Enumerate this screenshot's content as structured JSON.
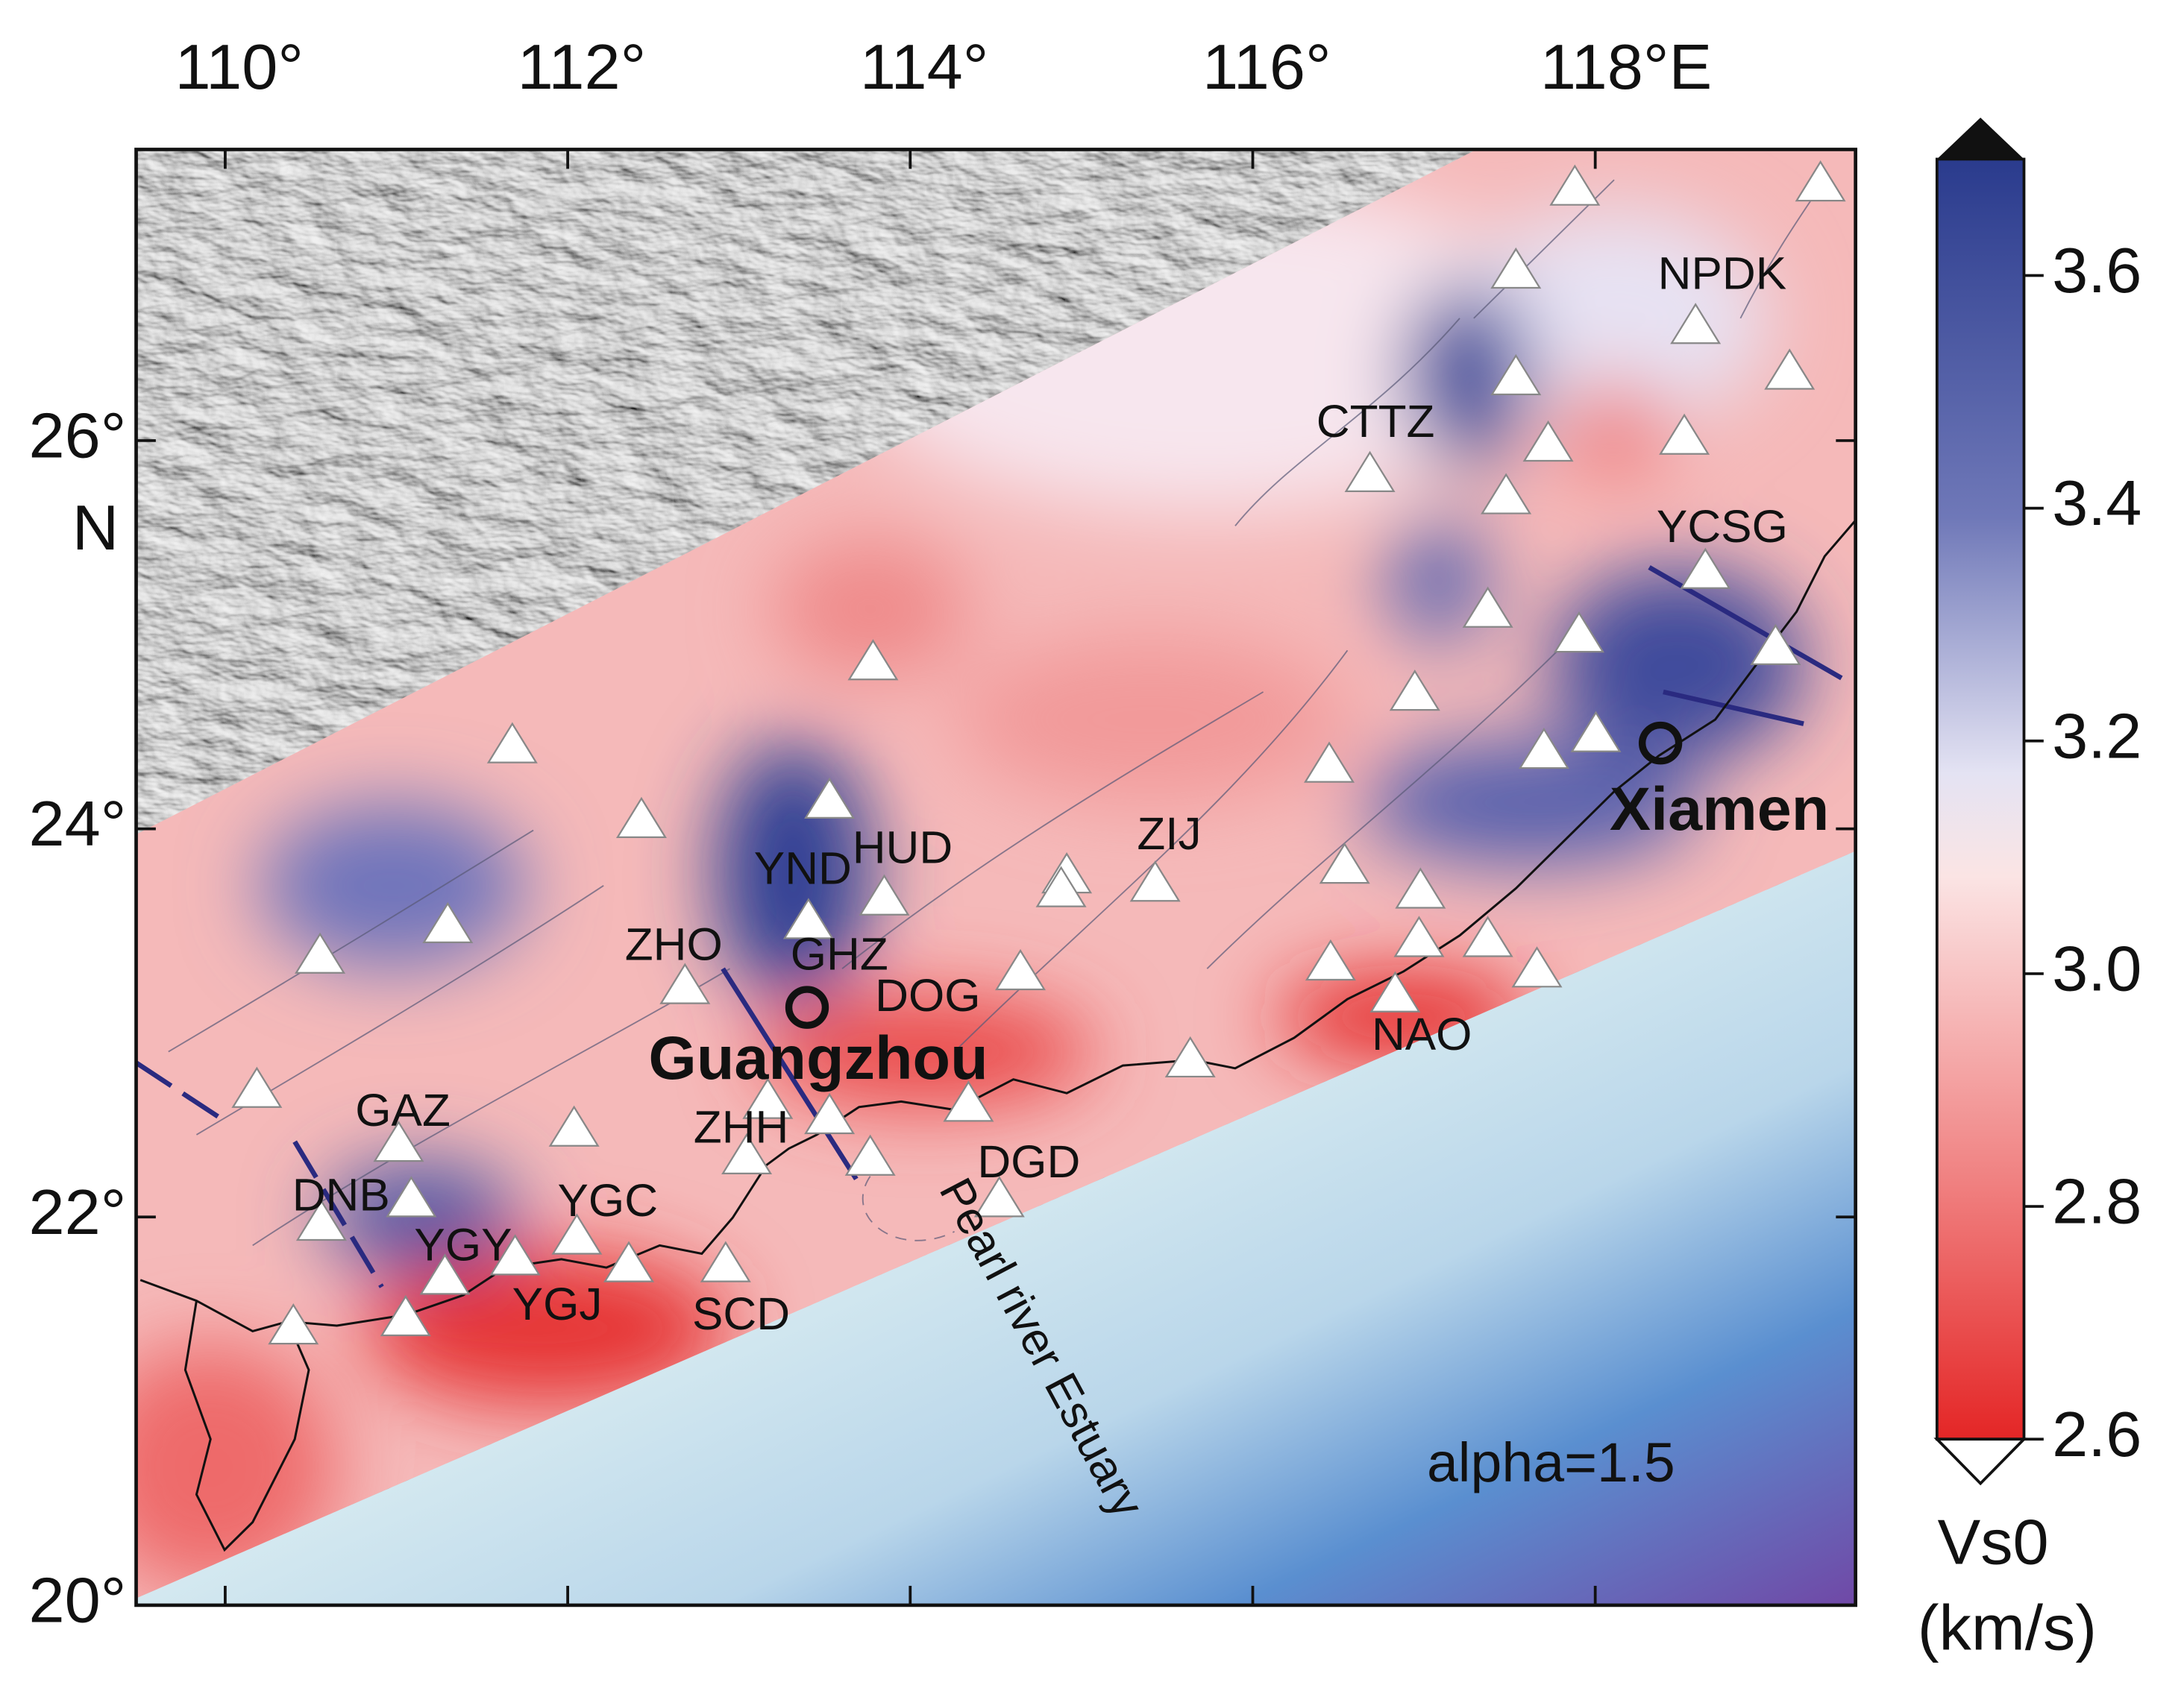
{
  "map": {
    "xlim": [
      109.48,
      119.52
    ],
    "ylim": [
      20,
      27.5
    ],
    "lon_ticks": [
      {
        "value": 110,
        "label": "110°"
      },
      {
        "value": 112,
        "label": "112°"
      },
      {
        "value": 114,
        "label": "114°"
      },
      {
        "value": 116,
        "label": "116°"
      },
      {
        "value": 118,
        "label": "118°E"
      }
    ],
    "lat_ticks": [
      {
        "value": 20,
        "label": "20°"
      },
      {
        "value": 22,
        "label": "22°"
      },
      {
        "value": 24,
        "label": "24°"
      },
      {
        "value": 26,
        "label": "26°"
      }
    ],
    "lat_axis_label": "N",
    "stations": [
      "NPDK",
      "CTTZ",
      "YCSG",
      "ZIJ",
      "HUD",
      "YND",
      "ZHO",
      "GHZ",
      "DOG",
      "NAO",
      "GAZ",
      "ZHH",
      "DGD",
      "DNB",
      "YGC",
      "YGY",
      "YGJ",
      "SCD"
    ],
    "cities": [
      "Guangzhou",
      "Xiamen"
    ],
    "annotations": [
      "Pearl river Estuary",
      "alpha=1.5"
    ],
    "colorbar": {
      "range": [
        2.6,
        3.7
      ],
      "ticks": [
        2.6,
        2.8,
        {
          "value": 3,
          "label": "3.0"
        },
        3.2,
        3.4,
        3.6
      ],
      "label": [
        "Vs0",
        "(km/s)"
      ]
    }
  }
}
